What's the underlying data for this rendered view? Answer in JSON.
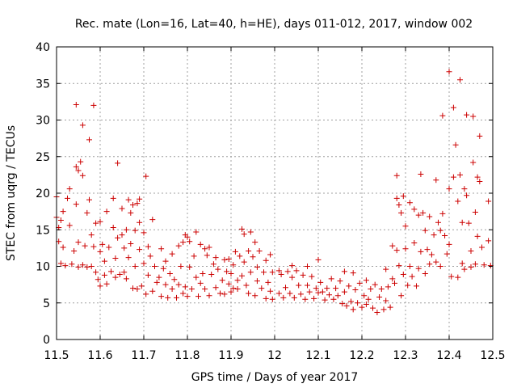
{
  "chart_data": {
    "type": "scatter",
    "title": "Rec. mate (Lon=16, Lat=40, h=HE), days 011-012, 2017, window 002",
    "xlabel": "GPS time / Days of year 2017",
    "ylabel": "STEC from uqrg / TECUs",
    "xlim": [
      11.5,
      12.5
    ],
    "ylim": [
      0,
      40
    ],
    "xticks": [
      "11.5",
      "11.6",
      "11.7",
      "11.8",
      "11.9",
      "12",
      "12.1",
      "12.2",
      "12.3",
      "12.4",
      "12.5"
    ],
    "yticks": [
      "0",
      "5",
      "10",
      "15",
      "20",
      "25",
      "30",
      "35",
      "40"
    ],
    "grid": true,
    "marker": "plus",
    "color": "#cc0000",
    "series": [
      {
        "points": [
          [
            11.5,
            19.5
          ],
          [
            11.5,
            16.7
          ],
          [
            11.505,
            15.3
          ],
          [
            11.505,
            13.4
          ],
          [
            11.51,
            10.4
          ],
          [
            11.51,
            16.3
          ],
          [
            11.515,
            17.5
          ],
          [
            11.515,
            12.6
          ],
          [
            11.52,
            10.1
          ],
          [
            11.525,
            19.3
          ],
          [
            11.53,
            20.6
          ],
          [
            11.53,
            15.6
          ],
          [
            11.535,
            10.3
          ],
          [
            11.54,
            12.1
          ],
          [
            11.545,
            18.5
          ],
          [
            11.545,
            23.6
          ],
          [
            11.545,
            32.1
          ],
          [
            11.55,
            23.1
          ],
          [
            11.55,
            13.3
          ],
          [
            11.55,
            9.9
          ],
          [
            11.555,
            24.3
          ],
          [
            11.56,
            29.3
          ],
          [
            11.56,
            22.4
          ],
          [
            11.56,
            10.2
          ],
          [
            11.565,
            12.8
          ],
          [
            11.57,
            17.3
          ],
          [
            11.57,
            9.9
          ],
          [
            11.575,
            27.3
          ],
          [
            11.575,
            19.1
          ],
          [
            11.58,
            14.3
          ],
          [
            11.58,
            10.0
          ],
          [
            11.585,
            32.0
          ],
          [
            11.585,
            12.7
          ],
          [
            11.59,
            15.9
          ],
          [
            11.59,
            9.2
          ],
          [
            11.595,
            8.2
          ],
          [
            11.6,
            16.1
          ],
          [
            11.6,
            12.0
          ],
          [
            11.6,
            7.3
          ],
          [
            11.605,
            13.0
          ],
          [
            11.61,
            10.7
          ],
          [
            11.61,
            8.8
          ],
          [
            11.615,
            17.5
          ],
          [
            11.615,
            7.6
          ],
          [
            11.62,
            12.6
          ],
          [
            11.625,
            9.3
          ],
          [
            11.63,
            19.3
          ],
          [
            11.63,
            15.3
          ],
          [
            11.635,
            11.1
          ],
          [
            11.635,
            8.5
          ],
          [
            11.64,
            24.1
          ],
          [
            11.64,
            13.9
          ],
          [
            11.645,
            8.9
          ],
          [
            11.65,
            17.9
          ],
          [
            11.65,
            14.3
          ],
          [
            11.655,
            12.5
          ],
          [
            11.655,
            9.2
          ],
          [
            11.66,
            15.0
          ],
          [
            11.66,
            8.3
          ],
          [
            11.665,
            19.1
          ],
          [
            11.665,
            11.2
          ],
          [
            11.67,
            17.3
          ],
          [
            11.67,
            13.1
          ],
          [
            11.675,
            18.4
          ],
          [
            11.675,
            7.0
          ],
          [
            11.68,
            14.9
          ],
          [
            11.68,
            10.0
          ],
          [
            11.685,
            18.6
          ],
          [
            11.685,
            6.9
          ],
          [
            11.69,
            19.2
          ],
          [
            11.69,
            16.0
          ],
          [
            11.69,
            12.3
          ],
          [
            11.695,
            7.3
          ],
          [
            11.7,
            14.6
          ],
          [
            11.7,
            10.4
          ],
          [
            11.705,
            22.3
          ],
          [
            11.705,
            6.2
          ],
          [
            11.71,
            12.7
          ],
          [
            11.71,
            8.8
          ],
          [
            11.715,
            11.4
          ],
          [
            11.72,
            16.4
          ],
          [
            11.72,
            6.6
          ],
          [
            11.725,
            10.0
          ],
          [
            11.73,
            7.8
          ],
          [
            11.735,
            8.5
          ],
          [
            11.74,
            12.4
          ],
          [
            11.74,
            5.9
          ],
          [
            11.745,
            9.7
          ],
          [
            11.75,
            10.7
          ],
          [
            11.75,
            7.5
          ],
          [
            11.755,
            5.7
          ],
          [
            11.76,
            9.0
          ],
          [
            11.765,
            11.7
          ],
          [
            11.765,
            6.9
          ],
          [
            11.77,
            8.2
          ],
          [
            11.775,
            5.7
          ],
          [
            11.78,
            12.8
          ],
          [
            11.78,
            7.5
          ],
          [
            11.785,
            10.0
          ],
          [
            11.79,
            13.3
          ],
          [
            11.79,
            6.3
          ],
          [
            11.795,
            14.3
          ],
          [
            11.795,
            7.2
          ],
          [
            11.8,
            14.0
          ],
          [
            11.8,
            5.9
          ],
          [
            11.805,
            13.4
          ],
          [
            11.805,
            9.9
          ],
          [
            11.81,
            6.9
          ],
          [
            11.815,
            11.4
          ],
          [
            11.82,
            14.7
          ],
          [
            11.82,
            8.5
          ],
          [
            11.825,
            5.9
          ],
          [
            11.83,
            13.0
          ],
          [
            11.83,
            7.7
          ],
          [
            11.835,
            9.0
          ],
          [
            11.84,
            12.4
          ],
          [
            11.84,
            6.9
          ],
          [
            11.845,
            11.5
          ],
          [
            11.85,
            12.6
          ],
          [
            11.85,
            6.0
          ],
          [
            11.855,
            8.9
          ],
          [
            11.86,
            10.3
          ],
          [
            11.865,
            7.1
          ],
          [
            11.865,
            11.2
          ],
          [
            11.87,
            9.6
          ],
          [
            11.875,
            6.3
          ],
          [
            11.88,
            8.1
          ],
          [
            11.885,
            10.9
          ],
          [
            11.885,
            6.2
          ],
          [
            11.89,
            9.3
          ],
          [
            11.895,
            11.0
          ],
          [
            11.895,
            7.6
          ],
          [
            11.9,
            9.0
          ],
          [
            11.9,
            6.5
          ],
          [
            11.905,
            10.2
          ],
          [
            11.905,
            7.0
          ],
          [
            11.91,
            12.0
          ],
          [
            11.915,
            8.1
          ],
          [
            11.915,
            6.9
          ],
          [
            11.92,
            11.4
          ],
          [
            11.925,
            15.1
          ],
          [
            11.925,
            8.7
          ],
          [
            11.93,
            14.4
          ],
          [
            11.93,
            10.6
          ],
          [
            11.935,
            7.4
          ],
          [
            11.94,
            12.1
          ],
          [
            11.94,
            6.3
          ],
          [
            11.945,
            14.7
          ],
          [
            11.945,
            9.2
          ],
          [
            11.95,
            11.3
          ],
          [
            11.955,
            13.3
          ],
          [
            11.955,
            6.0
          ],
          [
            11.96,
            9.9
          ],
          [
            11.96,
            8.0
          ],
          [
            11.965,
            12.1
          ],
          [
            11.97,
            7.0
          ],
          [
            11.975,
            9.2
          ],
          [
            11.98,
            10.8
          ],
          [
            11.98,
            5.6
          ],
          [
            11.985,
            7.8
          ],
          [
            11.99,
            11.6
          ],
          [
            11.99,
            6.6
          ],
          [
            11.995,
            9.2
          ],
          [
            11.995,
            5.5
          ],
          [
            12.01,
            9.4
          ],
          [
            12.01,
            6.3
          ],
          [
            12.015,
            8.9
          ],
          [
            12.02,
            5.7
          ],
          [
            12.025,
            7.1
          ],
          [
            12.03,
            9.3
          ],
          [
            12.035,
            6.3
          ],
          [
            12.04,
            10.1
          ],
          [
            12.04,
            8.5
          ],
          [
            12.045,
            5.7
          ],
          [
            12.05,
            9.4
          ],
          [
            12.055,
            7.4
          ],
          [
            12.06,
            6.2
          ],
          [
            12.065,
            8.8
          ],
          [
            12.07,
            5.5
          ],
          [
            12.075,
            10.0
          ],
          [
            12.075,
            7.4
          ],
          [
            12.08,
            6.5
          ],
          [
            12.085,
            8.6
          ],
          [
            12.09,
            5.6
          ],
          [
            12.095,
            7.0
          ],
          [
            12.1,
            10.9
          ],
          [
            12.1,
            6.4
          ],
          [
            12.105,
            7.8
          ],
          [
            12.11,
            6.5
          ],
          [
            12.115,
            5.4
          ],
          [
            12.12,
            7.0
          ],
          [
            12.125,
            6.1
          ],
          [
            12.13,
            8.3
          ],
          [
            12.135,
            5.5
          ],
          [
            12.14,
            7.0
          ],
          [
            12.145,
            6.0
          ],
          [
            12.15,
            8.0
          ],
          [
            12.155,
            4.9
          ],
          [
            12.16,
            9.3
          ],
          [
            12.16,
            6.5
          ],
          [
            12.165,
            4.6
          ],
          [
            12.17,
            7.3
          ],
          [
            12.175,
            5.2
          ],
          [
            12.18,
            9.1
          ],
          [
            12.18,
            4.1
          ],
          [
            12.185,
            6.8
          ],
          [
            12.19,
            5.0
          ],
          [
            12.195,
            7.7
          ],
          [
            12.2,
            4.4
          ],
          [
            12.205,
            6.0
          ],
          [
            12.21,
            8.1
          ],
          [
            12.21,
            4.8
          ],
          [
            12.215,
            5.5
          ],
          [
            12.22,
            6.9
          ],
          [
            12.225,
            4.3
          ],
          [
            12.23,
            7.5
          ],
          [
            12.235,
            3.7
          ],
          [
            12.24,
            5.8
          ],
          [
            12.245,
            6.9
          ],
          [
            12.25,
            4.1
          ],
          [
            12.255,
            9.6
          ],
          [
            12.255,
            5.3
          ],
          [
            12.26,
            7.2
          ],
          [
            12.265,
            4.4
          ],
          [
            12.27,
            12.8
          ],
          [
            12.27,
            8.3
          ],
          [
            12.275,
            7.7
          ],
          [
            12.28,
            19.3
          ],
          [
            12.28,
            22.4
          ],
          [
            12.28,
            12.2
          ],
          [
            12.285,
            18.4
          ],
          [
            12.285,
            10.1
          ],
          [
            12.29,
            17.3
          ],
          [
            12.29,
            6.0
          ],
          [
            12.295,
            19.6
          ],
          [
            12.295,
            8.9
          ],
          [
            12.3,
            15.5
          ],
          [
            12.3,
            12.4
          ],
          [
            12.305,
            7.4
          ],
          [
            12.31,
            18.7
          ],
          [
            12.31,
            10.0
          ],
          [
            12.315,
            8.6
          ],
          [
            12.32,
            17.8
          ],
          [
            12.32,
            13.2
          ],
          [
            12.325,
            7.3
          ],
          [
            12.33,
            17.0
          ],
          [
            12.33,
            9.7
          ],
          [
            12.335,
            22.6
          ],
          [
            12.335,
            12.0
          ],
          [
            12.34,
            17.3
          ],
          [
            12.345,
            14.9
          ],
          [
            12.345,
            9.0
          ],
          [
            12.35,
            12.3
          ],
          [
            12.355,
            16.8
          ],
          [
            12.355,
            10.3
          ],
          [
            12.36,
            11.6
          ],
          [
            12.365,
            14.3
          ],
          [
            12.37,
            21.8
          ],
          [
            12.37,
            10.6
          ],
          [
            12.375,
            16.0
          ],
          [
            12.38,
            14.9
          ],
          [
            12.38,
            10.0
          ],
          [
            12.385,
            17.2
          ],
          [
            12.385,
            30.6
          ],
          [
            12.39,
            14.2
          ],
          [
            12.395,
            11.7
          ],
          [
            12.4,
            36.6
          ],
          [
            12.4,
            20.6
          ],
          [
            12.4,
            13.0
          ],
          [
            12.405,
            8.6
          ],
          [
            12.41,
            22.2
          ],
          [
            12.41,
            31.7
          ],
          [
            12.415,
            26.6
          ],
          [
            12.42,
            18.9
          ],
          [
            12.42,
            8.5
          ],
          [
            12.425,
            22.5
          ],
          [
            12.425,
            35.5
          ],
          [
            12.43,
            16.0
          ],
          [
            12.43,
            10.4
          ],
          [
            12.435,
            20.6
          ],
          [
            12.435,
            9.6
          ],
          [
            12.44,
            30.7
          ],
          [
            12.44,
            19.7
          ],
          [
            12.445,
            15.9
          ],
          [
            12.45,
            12.1
          ],
          [
            12.45,
            9.9
          ],
          [
            12.455,
            30.5
          ],
          [
            12.455,
            24.2
          ],
          [
            12.46,
            17.4
          ],
          [
            12.46,
            10.3
          ],
          [
            12.465,
            22.2
          ],
          [
            12.465,
            14.1
          ],
          [
            12.47,
            27.8
          ],
          [
            12.47,
            21.6
          ],
          [
            12.475,
            12.6
          ],
          [
            12.48,
            10.2
          ],
          [
            12.49,
            18.9
          ],
          [
            12.49,
            13.5
          ],
          [
            12.495,
            10.1
          ]
        ]
      }
    ]
  }
}
